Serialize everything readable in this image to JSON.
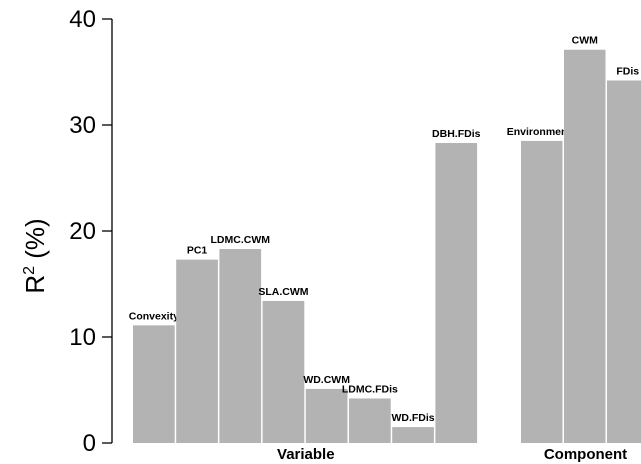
{
  "chart_data": {
    "type": "bar",
    "ylabel_base": "R",
    "ylabel_sup": "2",
    "ylabel_rest": " (%)",
    "ylim": [
      0,
      40
    ],
    "yticks": [
      0,
      10,
      20,
      30,
      40
    ],
    "grid": false,
    "bar_color": "#b3b3b3",
    "groups": [
      {
        "label": "Variable",
        "bars": [
          {
            "name": "Convexity",
            "value": 11.1
          },
          {
            "name": "PC1",
            "value": 17.3
          },
          {
            "name": "LDMC.CWM",
            "value": 18.3
          },
          {
            "name": "SLA.CWM",
            "value": 13.4
          },
          {
            "name": "WD.CWM",
            "value": 5.1
          },
          {
            "name": "LDMC.FDis",
            "value": 4.2
          },
          {
            "name": "WD.FDis",
            "value": 1.5
          },
          {
            "name": "DBH.FDis",
            "value": 28.3
          }
        ]
      },
      {
        "label": "Component",
        "bars": [
          {
            "name": "Environments",
            "value": 28.5
          },
          {
            "name": "CWM",
            "value": 37.1
          },
          {
            "name": "FDis",
            "value": 34.2
          }
        ]
      }
    ]
  }
}
